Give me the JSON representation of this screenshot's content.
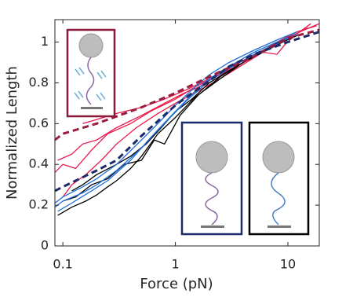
{
  "chart_data": {
    "type": "line",
    "xlabel": "Force (pN)",
    "ylabel": "Normalized Length",
    "xlim": [
      0.085,
      19
    ],
    "xticks": [
      0.1,
      1,
      10
    ],
    "xscale": "log",
    "ylim": [
      0,
      1.11
    ],
    "yticks": [
      0,
      0.2,
      0.4,
      0.6,
      0.8,
      1
    ],
    "series": [
      {
        "color": "#e8194b",
        "dashed": false,
        "x": [
          0.09,
          0.12,
          0.15,
          0.2,
          0.3,
          0.5,
          0.8,
          1.2,
          2,
          3,
          5,
          8,
          12,
          18
        ],
        "values": [
          0.42,
          0.45,
          0.5,
          0.52,
          0.58,
          0.64,
          0.7,
          0.75,
          0.8,
          0.86,
          0.93,
          1.0,
          1.05,
          1.08
        ]
      },
      {
        "color": "#e8194b",
        "dashed": false,
        "x": [
          0.085,
          0.1,
          0.13,
          0.18,
          0.25,
          0.4,
          0.6,
          1,
          1.5,
          2.5,
          4,
          6,
          9,
          14,
          19
        ],
        "values": [
          0.36,
          0.4,
          0.38,
          0.47,
          0.55,
          0.6,
          0.66,
          0.72,
          0.78,
          0.84,
          0.9,
          0.96,
          1.01,
          1.06,
          1.09
        ]
      },
      {
        "color": "#e8194b",
        "dashed": false,
        "x": [
          0.1,
          0.12,
          0.16,
          0.22,
          0.3,
          0.45,
          0.7,
          1,
          1.6,
          2.5,
          4,
          6,
          8,
          9.5,
          12,
          16
        ],
        "values": [
          0.24,
          0.3,
          0.35,
          0.42,
          0.5,
          0.58,
          0.65,
          0.7,
          0.76,
          0.82,
          0.89,
          0.95,
          0.94,
          0.99,
          1.04,
          1.09
        ]
      },
      {
        "color": "#e8194b",
        "dashed": false,
        "x": [
          0.15,
          0.2,
          0.3,
          0.5,
          0.8,
          1.3,
          2,
          3.5,
          5,
          7,
          10,
          15
        ],
        "values": [
          0.6,
          0.62,
          0.65,
          0.68,
          0.72,
          0.77,
          0.82,
          0.88,
          0.93,
          0.98,
          1.02,
          1.07
        ]
      },
      {
        "color": "#000000",
        "dashed": false,
        "x": [
          0.09,
          0.12,
          0.16,
          0.2,
          0.25,
          0.3,
          0.4,
          0.5,
          0.7,
          1,
          1.5,
          2.5,
          4,
          6,
          9,
          13
        ],
        "values": [
          0.15,
          0.19,
          0.22,
          0.25,
          0.29,
          0.32,
          0.38,
          0.44,
          0.55,
          0.63,
          0.73,
          0.82,
          0.9,
          0.95,
          1.0,
          1.04
        ]
      },
      {
        "color": "#000000",
        "dashed": false,
        "x": [
          0.1,
          0.13,
          0.18,
          0.25,
          0.35,
          0.5,
          0.65,
          0.8,
          1.1,
          1.6,
          2.5,
          4,
          6,
          10
        ],
        "values": [
          0.22,
          0.24,
          0.3,
          0.33,
          0.4,
          0.42,
          0.52,
          0.5,
          0.64,
          0.74,
          0.83,
          0.9,
          0.96,
          1.02
        ]
      },
      {
        "color": "#000000",
        "dashed": false,
        "x": [
          0.12,
          0.15,
          0.2,
          0.3,
          0.4,
          0.55,
          0.75,
          1,
          1.4,
          2,
          3,
          5,
          8
        ],
        "values": [
          0.27,
          0.3,
          0.35,
          0.4,
          0.44,
          0.5,
          0.58,
          0.66,
          0.72,
          0.8,
          0.86,
          0.93,
          0.99
        ]
      },
      {
        "color": "#1f6fd6",
        "dashed": false,
        "x": [
          0.085,
          0.1,
          0.15,
          0.2,
          0.3,
          0.5,
          0.7,
          1,
          1.5,
          2,
          3,
          5,
          8,
          12
        ],
        "values": [
          0.19,
          0.22,
          0.26,
          0.3,
          0.37,
          0.48,
          0.57,
          0.66,
          0.76,
          0.82,
          0.88,
          0.95,
          1.0,
          1.04
        ]
      },
      {
        "color": "#1f6fd6",
        "dashed": false,
        "x": [
          0.085,
          0.1,
          0.15,
          0.2,
          0.3,
          0.5,
          0.7,
          1,
          1.5,
          2,
          3,
          5,
          8,
          12
        ],
        "values": [
          0.21,
          0.24,
          0.29,
          0.33,
          0.4,
          0.52,
          0.6,
          0.69,
          0.78,
          0.84,
          0.9,
          0.96,
          1.01,
          1.05
        ]
      },
      {
        "color": "#1f6fd6",
        "dashed": false,
        "x": [
          0.09,
          0.12,
          0.18,
          0.25,
          0.4,
          0.6,
          0.9,
          1.3,
          2,
          3,
          5,
          8,
          11
        ],
        "values": [
          0.17,
          0.21,
          0.27,
          0.32,
          0.42,
          0.53,
          0.63,
          0.72,
          0.81,
          0.87,
          0.94,
          0.99,
          1.03
        ]
      },
      {
        "color": "#9b1b3e",
        "dashed": true,
        "x": [
          0.085,
          0.1,
          0.2,
          0.5,
          1,
          2,
          5,
          10,
          19
        ],
        "values": [
          0.52,
          0.55,
          0.6,
          0.68,
          0.75,
          0.83,
          0.93,
          1.02,
          1.06
        ]
      },
      {
        "color": "#1b2a6b",
        "dashed": true,
        "x": [
          0.085,
          0.1,
          0.2,
          0.3,
          0.5,
          1,
          2,
          3,
          5,
          10,
          19
        ],
        "values": [
          0.27,
          0.29,
          0.37,
          0.42,
          0.54,
          0.69,
          0.81,
          0.88,
          0.94,
          1.0,
          1.05
        ]
      }
    ]
  }
}
